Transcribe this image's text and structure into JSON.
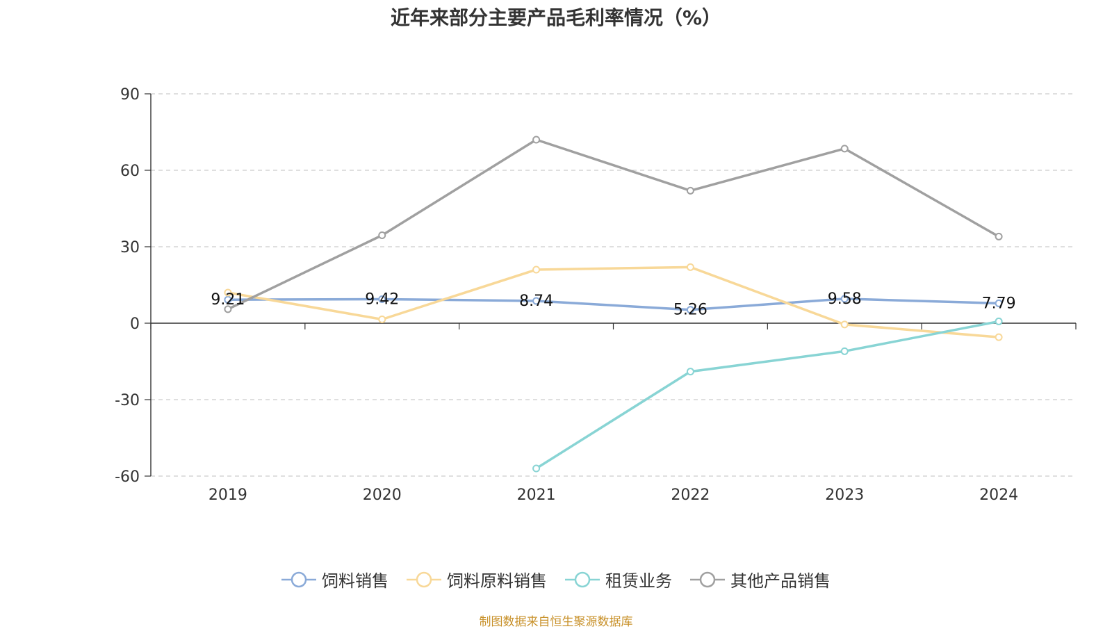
{
  "chart_data": {
    "type": "line",
    "title": "近年来部分主要产品毛利率情况（%）",
    "x": [
      "2019",
      "2020",
      "2021",
      "2022",
      "2023",
      "2024"
    ],
    "ylim": [
      -60,
      90
    ],
    "yticks": [
      "90",
      "60",
      "30",
      "0",
      "-30",
      "-60"
    ],
    "grid": true,
    "legend_position": "bottom",
    "series": [
      {
        "name": "饲料销售",
        "color": "#8aaad8",
        "values": [
          9.21,
          9.42,
          8.74,
          5.26,
          9.58,
          7.79
        ],
        "labels": [
          "9.21",
          "9.42",
          "8.74",
          "5.26",
          "9.58",
          "7.79"
        ]
      },
      {
        "name": "饲料原料销售",
        "color": "#f8d898",
        "values": [
          12.0,
          1.5,
          21.0,
          22.0,
          -0.5,
          -5.5
        ],
        "labels": []
      },
      {
        "name": "租赁业务",
        "color": "#88d4d4",
        "values": [
          null,
          null,
          -57.0,
          -19.0,
          -11.0,
          0.7
        ],
        "labels": []
      },
      {
        "name": "其他产品销售",
        "color": "#a0a0a0",
        "values": [
          5.5,
          34.5,
          72.0,
          52.0,
          68.5,
          34.0
        ],
        "labels": []
      }
    ]
  },
  "source_text": "制图数据来自恒生聚源数据库"
}
